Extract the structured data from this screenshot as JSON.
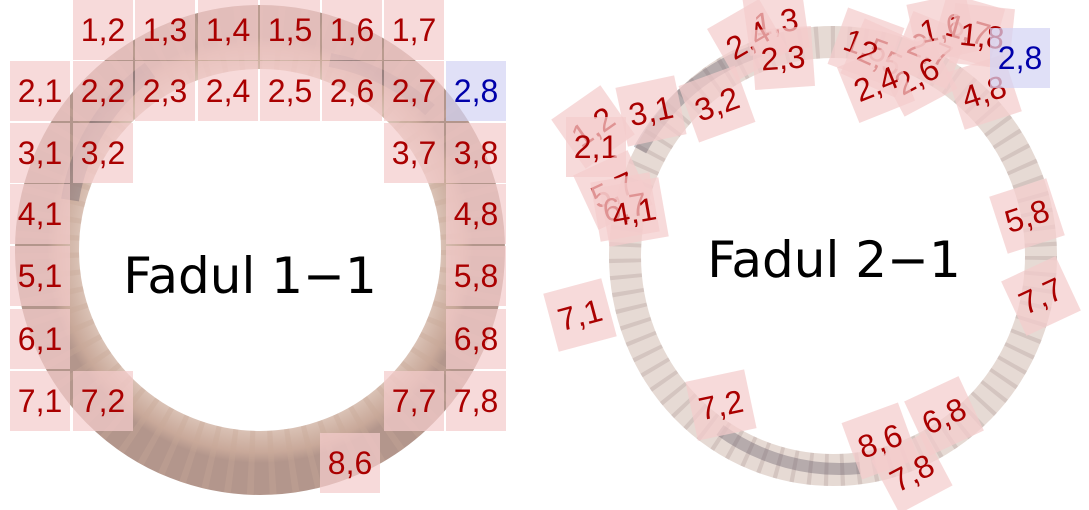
{
  "panels": [
    {
      "title": "Fadul 1−1",
      "cores": [
        {
          "label": "1,2",
          "status": "normal"
        },
        {
          "label": "1,3",
          "status": "normal"
        },
        {
          "label": "1,4",
          "status": "normal"
        },
        {
          "label": "1,5",
          "status": "normal"
        },
        {
          "label": "1,6",
          "status": "normal"
        },
        {
          "label": "1,7",
          "status": "normal"
        },
        {
          "label": "2,1",
          "status": "normal"
        },
        {
          "label": "2,2",
          "status": "normal"
        },
        {
          "label": "2,3",
          "status": "normal"
        },
        {
          "label": "2,4",
          "status": "normal"
        },
        {
          "label": "2,5",
          "status": "normal"
        },
        {
          "label": "2,6",
          "status": "normal"
        },
        {
          "label": "2,7",
          "status": "normal"
        },
        {
          "label": "2,8",
          "status": "highlight"
        },
        {
          "label": "3,1",
          "status": "normal"
        },
        {
          "label": "3,2",
          "status": "normal"
        },
        {
          "label": "3,7",
          "status": "normal"
        },
        {
          "label": "3,8",
          "status": "normal"
        },
        {
          "label": "4,1",
          "status": "normal"
        },
        {
          "label": "4,8",
          "status": "normal"
        },
        {
          "label": "5,1",
          "status": "normal"
        },
        {
          "label": "5,8",
          "status": "normal"
        },
        {
          "label": "6,1",
          "status": "normal"
        },
        {
          "label": "6,8",
          "status": "normal"
        },
        {
          "label": "7,1",
          "status": "normal"
        },
        {
          "label": "7,2",
          "status": "normal"
        },
        {
          "label": "7,7",
          "status": "normal"
        },
        {
          "label": "7,8",
          "status": "normal"
        },
        {
          "label": "8,6",
          "status": "normal"
        }
      ]
    },
    {
      "title": "Fadul 2−1",
      "cores": [
        {
          "label": "1,3",
          "status": "normal"
        },
        {
          "label": "2,4",
          "status": "normal"
        },
        {
          "label": "2,3",
          "status": "normal"
        },
        {
          "label": "1,5",
          "status": "normal"
        },
        {
          "label": "2,5",
          "status": "normal"
        },
        {
          "label": "2,7",
          "status": "normal"
        },
        {
          "label": "1,6",
          "status": "normal"
        },
        {
          "label": "1,7",
          "status": "normal"
        },
        {
          "label": "1,8",
          "status": "normal"
        },
        {
          "label": "2,6",
          "status": "normal"
        },
        {
          "label": "2,4",
          "status": "normal"
        },
        {
          "label": "4,8",
          "status": "normal"
        },
        {
          "label": "2,8",
          "status": "highlight"
        },
        {
          "label": "3,1",
          "status": "normal"
        },
        {
          "label": "3,2",
          "status": "normal"
        },
        {
          "label": "1,2",
          "status": "normal"
        },
        {
          "label": "2,1",
          "status": "normal"
        },
        {
          "label": "5,7",
          "status": "normal"
        },
        {
          "label": "6,7",
          "status": "normal"
        },
        {
          "label": "4,1",
          "status": "normal"
        },
        {
          "label": "5,8",
          "status": "normal"
        },
        {
          "label": "7,7",
          "status": "normal"
        },
        {
          "label": "7,1",
          "status": "normal"
        },
        {
          "label": "7,2",
          "status": "normal"
        },
        {
          "label": "6,8",
          "status": "normal"
        },
        {
          "label": "8,6",
          "status": "normal"
        },
        {
          "label": "7,8",
          "status": "normal"
        }
      ]
    }
  ],
  "colors": {
    "label_normal": "#aa0000",
    "label_highlight": "#0000aa",
    "box_normal": "#f4cccc",
    "box_highlight": "#d4d4f4",
    "ring_outer": "#e6d4ca",
    "ring_dark": "#5c5262"
  }
}
